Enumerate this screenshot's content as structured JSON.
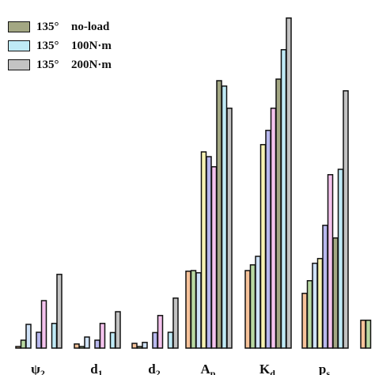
{
  "chart_data": {
    "type": "bar",
    "title": "",
    "xlabel": "",
    "ylabel": "",
    "ylim": [
      0,
      100
    ],
    "legend_position": "top-left",
    "grid": false,
    "categories": [
      {
        "base": "ψ",
        "sub": "2"
      },
      {
        "base": "d",
        "sub": "1"
      },
      {
        "base": "d",
        "sub": "2"
      },
      {
        "base": "A",
        "sub": "p"
      },
      {
        "base": "K",
        "sub": "d"
      },
      {
        "base": "p",
        "sub": "s"
      }
    ],
    "series": [
      {
        "angle": "",
        "load": "",
        "color": "#f7c39a",
        "values": [
          0.5,
          1.3,
          1.5,
          24.3,
          24.5,
          17.3
        ]
      },
      {
        "angle": "",
        "load": "",
        "color": "#b8d9a2",
        "values": [
          2.5,
          0.5,
          0.5,
          24.5,
          26.3,
          21.3
        ]
      },
      {
        "angle": "",
        "load": "",
        "color": "#cfe2f8",
        "values": [
          7.5,
          3.5,
          1.8,
          23.8,
          29.0,
          26.8
        ]
      },
      {
        "angle": "",
        "load": "",
        "color": "#f7f3b2",
        "values": [
          0,
          0,
          0,
          62.0,
          64.3,
          28.3
        ]
      },
      {
        "angle": "",
        "load": "",
        "color": "#b8b8ee",
        "values": [
          5.0,
          2.5,
          4.9,
          60.5,
          68.8,
          38.8
        ]
      },
      {
        "angle": "",
        "load": "",
        "color": "#f5c3ee",
        "values": [
          15.0,
          7.8,
          10.3,
          57.3,
          75.8,
          54.8
        ]
      },
      {
        "angle": "135°",
        "load": "no-load",
        "color": "#a3a783",
        "values": [
          0,
          0,
          0,
          84.5,
          85.0,
          34.8
        ]
      },
      {
        "angle": "135°",
        "load": "100N·m",
        "color": "#bfeaf6",
        "values": [
          7.8,
          4.9,
          5.0,
          82.8,
          94.3,
          56.5
        ]
      },
      {
        "angle": "135°",
        "load": "200N·m",
        "color": "#c3c3c3",
        "values": [
          23.3,
          11.5,
          15.8,
          75.8,
          104.3,
          81.3
        ]
      }
    ],
    "partial_category": {
      "values": [
        8.8,
        8.8
      ]
    }
  }
}
